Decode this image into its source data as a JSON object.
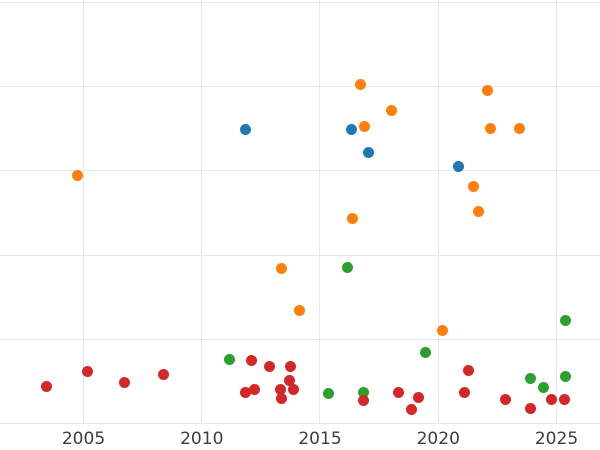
{
  "chart": {
    "title": "",
    "grid": true,
    "legend": "none",
    "background_color": "#ffffff",
    "gridline_color": "#e8e8e8",
    "tick_label_color": "#3d3d3d"
  },
  "chart_data": {
    "type": "scatter",
    "title": "",
    "xlabel": "",
    "ylabel": "",
    "x_tick_labels": [
      "2005",
      "2010",
      "2015",
      "2020",
      "2025"
    ],
    "x_tick_values": [
      2005,
      2010,
      2015,
      2020,
      2025
    ],
    "y_tick_labels": [],
    "y_gridline_units": [
      0,
      1,
      2,
      3,
      4,
      5
    ],
    "xlim_visible": [
      2001.5,
      2026.8
    ],
    "ylim_visible": [
      0,
      5
    ],
    "series": [
      {
        "name": "blue",
        "color": "#1f77b4",
        "points": [
          [
            2011.86,
            3.49
          ],
          [
            2016.35,
            3.49
          ],
          [
            2017.06,
            3.22
          ],
          [
            2020.85,
            3.05
          ]
        ]
      },
      {
        "name": "orange",
        "color": "#ff7f0e",
        "points": [
          [
            2004.74,
            2.95
          ],
          [
            2013.38,
            1.84
          ],
          [
            2014.12,
            1.34
          ],
          [
            2016.37,
            2.44
          ],
          [
            2016.7,
            4.03
          ],
          [
            2016.9,
            3.53
          ],
          [
            2018.04,
            3.72
          ],
          [
            2020.17,
            1.1
          ],
          [
            2021.47,
            2.82
          ],
          [
            2021.72,
            2.52
          ],
          [
            2022.09,
            3.96
          ],
          [
            2022.2,
            3.51
          ],
          [
            2023.44,
            3.51
          ]
        ]
      },
      {
        "name": "green",
        "color": "#2ca02c",
        "points": [
          [
            2011.18,
            0.76
          ],
          [
            2015.38,
            0.36
          ],
          [
            2016.17,
            1.86
          ],
          [
            2016.82,
            0.37
          ],
          [
            2019.47,
            0.85
          ],
          [
            2023.89,
            0.54
          ],
          [
            2024.47,
            0.43
          ],
          [
            2025.38,
            1.23
          ],
          [
            2025.4,
            0.56
          ]
        ]
      },
      {
        "name": "red",
        "color": "#d62728",
        "points": [
          [
            2003.44,
            0.44
          ],
          [
            2005.16,
            0.62
          ],
          [
            2006.74,
            0.49
          ],
          [
            2008.4,
            0.58
          ],
          [
            2011.86,
            0.37
          ],
          [
            2012.1,
            0.75
          ],
          [
            2012.21,
            0.41
          ],
          [
            2012.86,
            0.68
          ],
          [
            2013.31,
            0.41
          ],
          [
            2013.39,
            0.3
          ],
          [
            2013.69,
            0.51
          ],
          [
            2013.74,
            0.68
          ],
          [
            2013.86,
            0.4
          ],
          [
            2016.84,
            0.27
          ],
          [
            2018.31,
            0.37
          ],
          [
            2018.88,
            0.17
          ],
          [
            2019.16,
            0.31
          ],
          [
            2021.1,
            0.37
          ],
          [
            2021.26,
            0.63
          ],
          [
            2022.85,
            0.29
          ],
          [
            2023.91,
            0.18
          ],
          [
            2024.8,
            0.28
          ],
          [
            2025.35,
            0.28
          ]
        ]
      }
    ]
  }
}
